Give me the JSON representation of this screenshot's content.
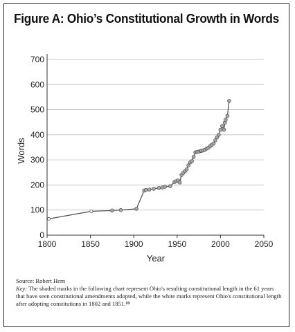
{
  "figure": {
    "title": "Figure A: Ohio’s Constitutional Growth in Words"
  },
  "source": {
    "line": "Source: Robert Hern",
    "key_label": "Key:",
    "key_text": " The shaded marks in the following chart represent Ohio's resulting constitutional length in the 61 years that have seen constitutional amendments adopted, while the white marks represent Ohio's constitutional length after adopting constitutions in 1802 and 1851.",
    "footnote": "10"
  },
  "chart_data": {
    "type": "line",
    "title": "Figure A: Ohio’s Constitutional Growth in Words",
    "xlabel": "Year",
    "ylabel": "Words",
    "xlim": [
      1800,
      2050
    ],
    "ylim": [
      0,
      700
    ],
    "x_ticks": [
      1800,
      1850,
      1900,
      1950,
      2000,
      2050
    ],
    "y_ticks": [
      0,
      100,
      200,
      300,
      400,
      500,
      600,
      700
    ],
    "grid": "horizontal",
    "series": [
      {
        "color": "#555555",
        "points": [
          {
            "x": 1802,
            "y": 65,
            "kind": "white"
          },
          {
            "x": 1851,
            "y": 95,
            "kind": "white"
          },
          {
            "x": 1875,
            "y": 98,
            "kind": "shaded"
          },
          {
            "x": 1885,
            "y": 100,
            "kind": "shaded"
          },
          {
            "x": 1903,
            "y": 105,
            "kind": "shaded"
          },
          {
            "x": 1912,
            "y": 178,
            "kind": "shaded"
          },
          {
            "x": 1914,
            "y": 180,
            "kind": "shaded"
          },
          {
            "x": 1918,
            "y": 182,
            "kind": "shaded"
          },
          {
            "x": 1923,
            "y": 185,
            "kind": "shaded"
          },
          {
            "x": 1929,
            "y": 188,
            "kind": "shaded"
          },
          {
            "x": 1933,
            "y": 190,
            "kind": "shaded"
          },
          {
            "x": 1936,
            "y": 193,
            "kind": "shaded"
          },
          {
            "x": 1942,
            "y": 195,
            "kind": "shaded"
          },
          {
            "x": 1947,
            "y": 212,
            "kind": "shaded"
          },
          {
            "x": 1949,
            "y": 215,
            "kind": "shaded"
          },
          {
            "x": 1951,
            "y": 218,
            "kind": "shaded"
          },
          {
            "x": 1953,
            "y": 210,
            "kind": "shaded"
          },
          {
            "x": 1955,
            "y": 240,
            "kind": "shaded"
          },
          {
            "x": 1957,
            "y": 248,
            "kind": "shaded"
          },
          {
            "x": 1959,
            "y": 255,
            "kind": "shaded"
          },
          {
            "x": 1961,
            "y": 262,
            "kind": "shaded"
          },
          {
            "x": 1963,
            "y": 278,
            "kind": "shaded"
          },
          {
            "x": 1965,
            "y": 290,
            "kind": "shaded"
          },
          {
            "x": 1967,
            "y": 295,
            "kind": "shaded"
          },
          {
            "x": 1969,
            "y": 312,
            "kind": "shaded"
          },
          {
            "x": 1971,
            "y": 330,
            "kind": "shaded"
          },
          {
            "x": 1973,
            "y": 332,
            "kind": "shaded"
          },
          {
            "x": 1975,
            "y": 333,
            "kind": "shaded"
          },
          {
            "x": 1977,
            "y": 335,
            "kind": "shaded"
          },
          {
            "x": 1978,
            "y": 336,
            "kind": "shaded"
          },
          {
            "x": 1980,
            "y": 338,
            "kind": "shaded"
          },
          {
            "x": 1982,
            "y": 340,
            "kind": "shaded"
          },
          {
            "x": 1984,
            "y": 345,
            "kind": "shaded"
          },
          {
            "x": 1986,
            "y": 348,
            "kind": "shaded"
          },
          {
            "x": 1988,
            "y": 355,
            "kind": "shaded"
          },
          {
            "x": 1990,
            "y": 360,
            "kind": "shaded"
          },
          {
            "x": 1992,
            "y": 365,
            "kind": "shaded"
          },
          {
            "x": 1994,
            "y": 378,
            "kind": "shaded"
          },
          {
            "x": 1996,
            "y": 390,
            "kind": "shaded"
          },
          {
            "x": 1998,
            "y": 400,
            "kind": "shaded"
          },
          {
            "x": 2000,
            "y": 420,
            "kind": "shaded"
          },
          {
            "x": 2002,
            "y": 435,
            "kind": "shaded"
          },
          {
            "x": 2004,
            "y": 420,
            "kind": "shaded"
          },
          {
            "x": 2005,
            "y": 448,
            "kind": "shaded"
          },
          {
            "x": 2006,
            "y": 460,
            "kind": "shaded"
          },
          {
            "x": 2008,
            "y": 475,
            "kind": "shaded"
          },
          {
            "x": 2010,
            "y": 535,
            "kind": "shaded"
          }
        ]
      }
    ]
  }
}
